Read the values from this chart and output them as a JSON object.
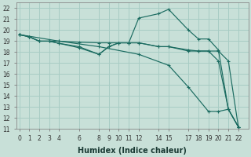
{
  "bg_color": "#c8e0d8",
  "grid_color": "#a8ccc4",
  "line_color": "#1a6b60",
  "xlabel": "Humidex (Indice chaleur)",
  "ylim": [
    11,
    22.5
  ],
  "xlim": [
    -0.3,
    23
  ],
  "yticks": [
    11,
    12,
    13,
    14,
    15,
    16,
    17,
    18,
    19,
    20,
    21,
    22
  ],
  "xticks": [
    0,
    1,
    2,
    3,
    4,
    6,
    8,
    9,
    10,
    11,
    12,
    14,
    15,
    17,
    18,
    19,
    20,
    21,
    22
  ],
  "lines": [
    {
      "x": [
        0,
        1,
        2,
        3,
        4,
        6,
        8,
        9,
        10,
        11,
        12,
        14,
        15,
        17,
        18,
        19,
        20,
        21,
        22
      ],
      "y": [
        19.6,
        19.4,
        19.0,
        19.0,
        19.0,
        18.9,
        18.85,
        18.85,
        18.85,
        18.85,
        18.85,
        18.5,
        18.5,
        18.2,
        18.1,
        18.1,
        18.1,
        17.2,
        11.2
      ]
    },
    {
      "x": [
        0,
        1,
        2,
        3,
        4,
        6,
        8,
        9,
        10,
        11,
        12,
        14,
        15,
        17,
        18,
        19,
        20,
        21,
        22
      ],
      "y": [
        19.6,
        19.4,
        19.0,
        19.0,
        18.8,
        18.4,
        17.8,
        18.5,
        18.85,
        18.85,
        18.85,
        18.5,
        18.5,
        18.1,
        18.1,
        18.1,
        17.2,
        12.8,
        11.2
      ]
    },
    {
      "x": [
        0,
        1,
        2,
        3,
        4,
        6,
        8,
        9,
        10,
        11,
        12,
        14,
        15,
        17,
        18,
        19,
        20,
        21,
        22
      ],
      "y": [
        19.6,
        19.4,
        19.0,
        19.0,
        18.8,
        18.5,
        17.8,
        18.5,
        18.85,
        18.85,
        21.1,
        21.5,
        21.9,
        20.0,
        19.2,
        19.2,
        18.2,
        12.8,
        11.2
      ]
    },
    {
      "x": [
        0,
        4,
        8,
        12,
        15,
        17,
        19,
        20,
        21,
        22
      ],
      "y": [
        19.6,
        19.0,
        18.5,
        17.8,
        16.8,
        14.8,
        12.6,
        12.6,
        12.8,
        11.2
      ]
    }
  ]
}
